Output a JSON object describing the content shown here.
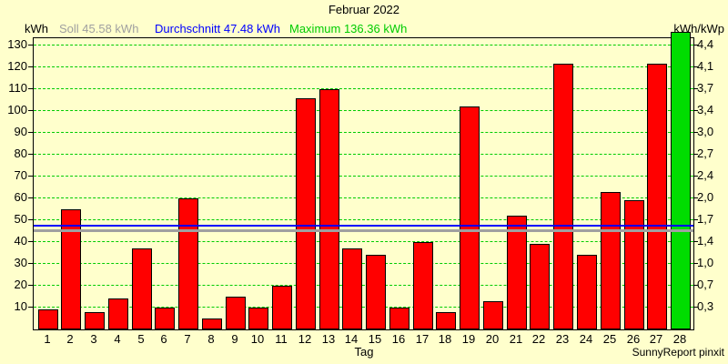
{
  "title": "Februar 2022",
  "header": {
    "left_axis_unit": "kWh",
    "soll_label": "Soll 45.58 kWh",
    "durchschnitt_label": "Durchschnitt 47.48 kWh",
    "maximum_label": "Maximum 136.36 kWh",
    "right_axis_unit": "kWh/kWp"
  },
  "footer": {
    "xlabel": "Tag",
    "credit": "SunnyReport pinxit"
  },
  "colors": {
    "background": "#ffffcc",
    "bar_red": "#ff0000",
    "bar_green": "#00dd00",
    "gridline_green": "#00cc00",
    "soll_gray": "#a0a0a0",
    "durchschnitt_blue": "#0000ff",
    "maximum_green": "#00cc00",
    "axis_border": "#000000"
  },
  "chart_data": {
    "type": "bar",
    "title": "Februar 2022",
    "xlabel": "Tag",
    "ylabel_left": "kWh",
    "ylabel_right": "kWh/kWp",
    "categories": [
      "1",
      "2",
      "3",
      "4",
      "5",
      "6",
      "7",
      "8",
      "9",
      "10",
      "11",
      "12",
      "13",
      "14",
      "15",
      "16",
      "17",
      "18",
      "19",
      "20",
      "21",
      "22",
      "23",
      "24",
      "25",
      "26",
      "27",
      "28"
    ],
    "values": [
      9,
      55,
      8,
      14,
      37,
      10,
      60,
      5,
      15,
      10,
      20,
      106,
      110,
      37,
      34,
      10,
      40,
      8,
      102,
      13,
      52,
      39,
      121.5,
      34,
      63,
      59,
      121.5,
      136.36
    ],
    "highlight_index": 27,
    "highlight_meaning": "maximum day (green bar)",
    "soll_kwh": 45.58,
    "durchschnitt_kwh": 47.48,
    "maximum_kwh": 136.36,
    "ylim": [
      0,
      133.3
    ],
    "left_ticks": [
      10,
      20,
      30,
      40,
      50,
      60,
      70,
      80,
      90,
      100,
      110,
      120,
      130
    ],
    "right_tick_labels": [
      "0,3",
      "0,7",
      "1,0",
      "1,4",
      "1,7",
      "2,0",
      "2,4",
      "2,7",
      "3,0",
      "3,4",
      "3,7",
      "4,1",
      "4,4"
    ],
    "grid": true,
    "grid_style": "dashed",
    "legend_position": "top"
  }
}
